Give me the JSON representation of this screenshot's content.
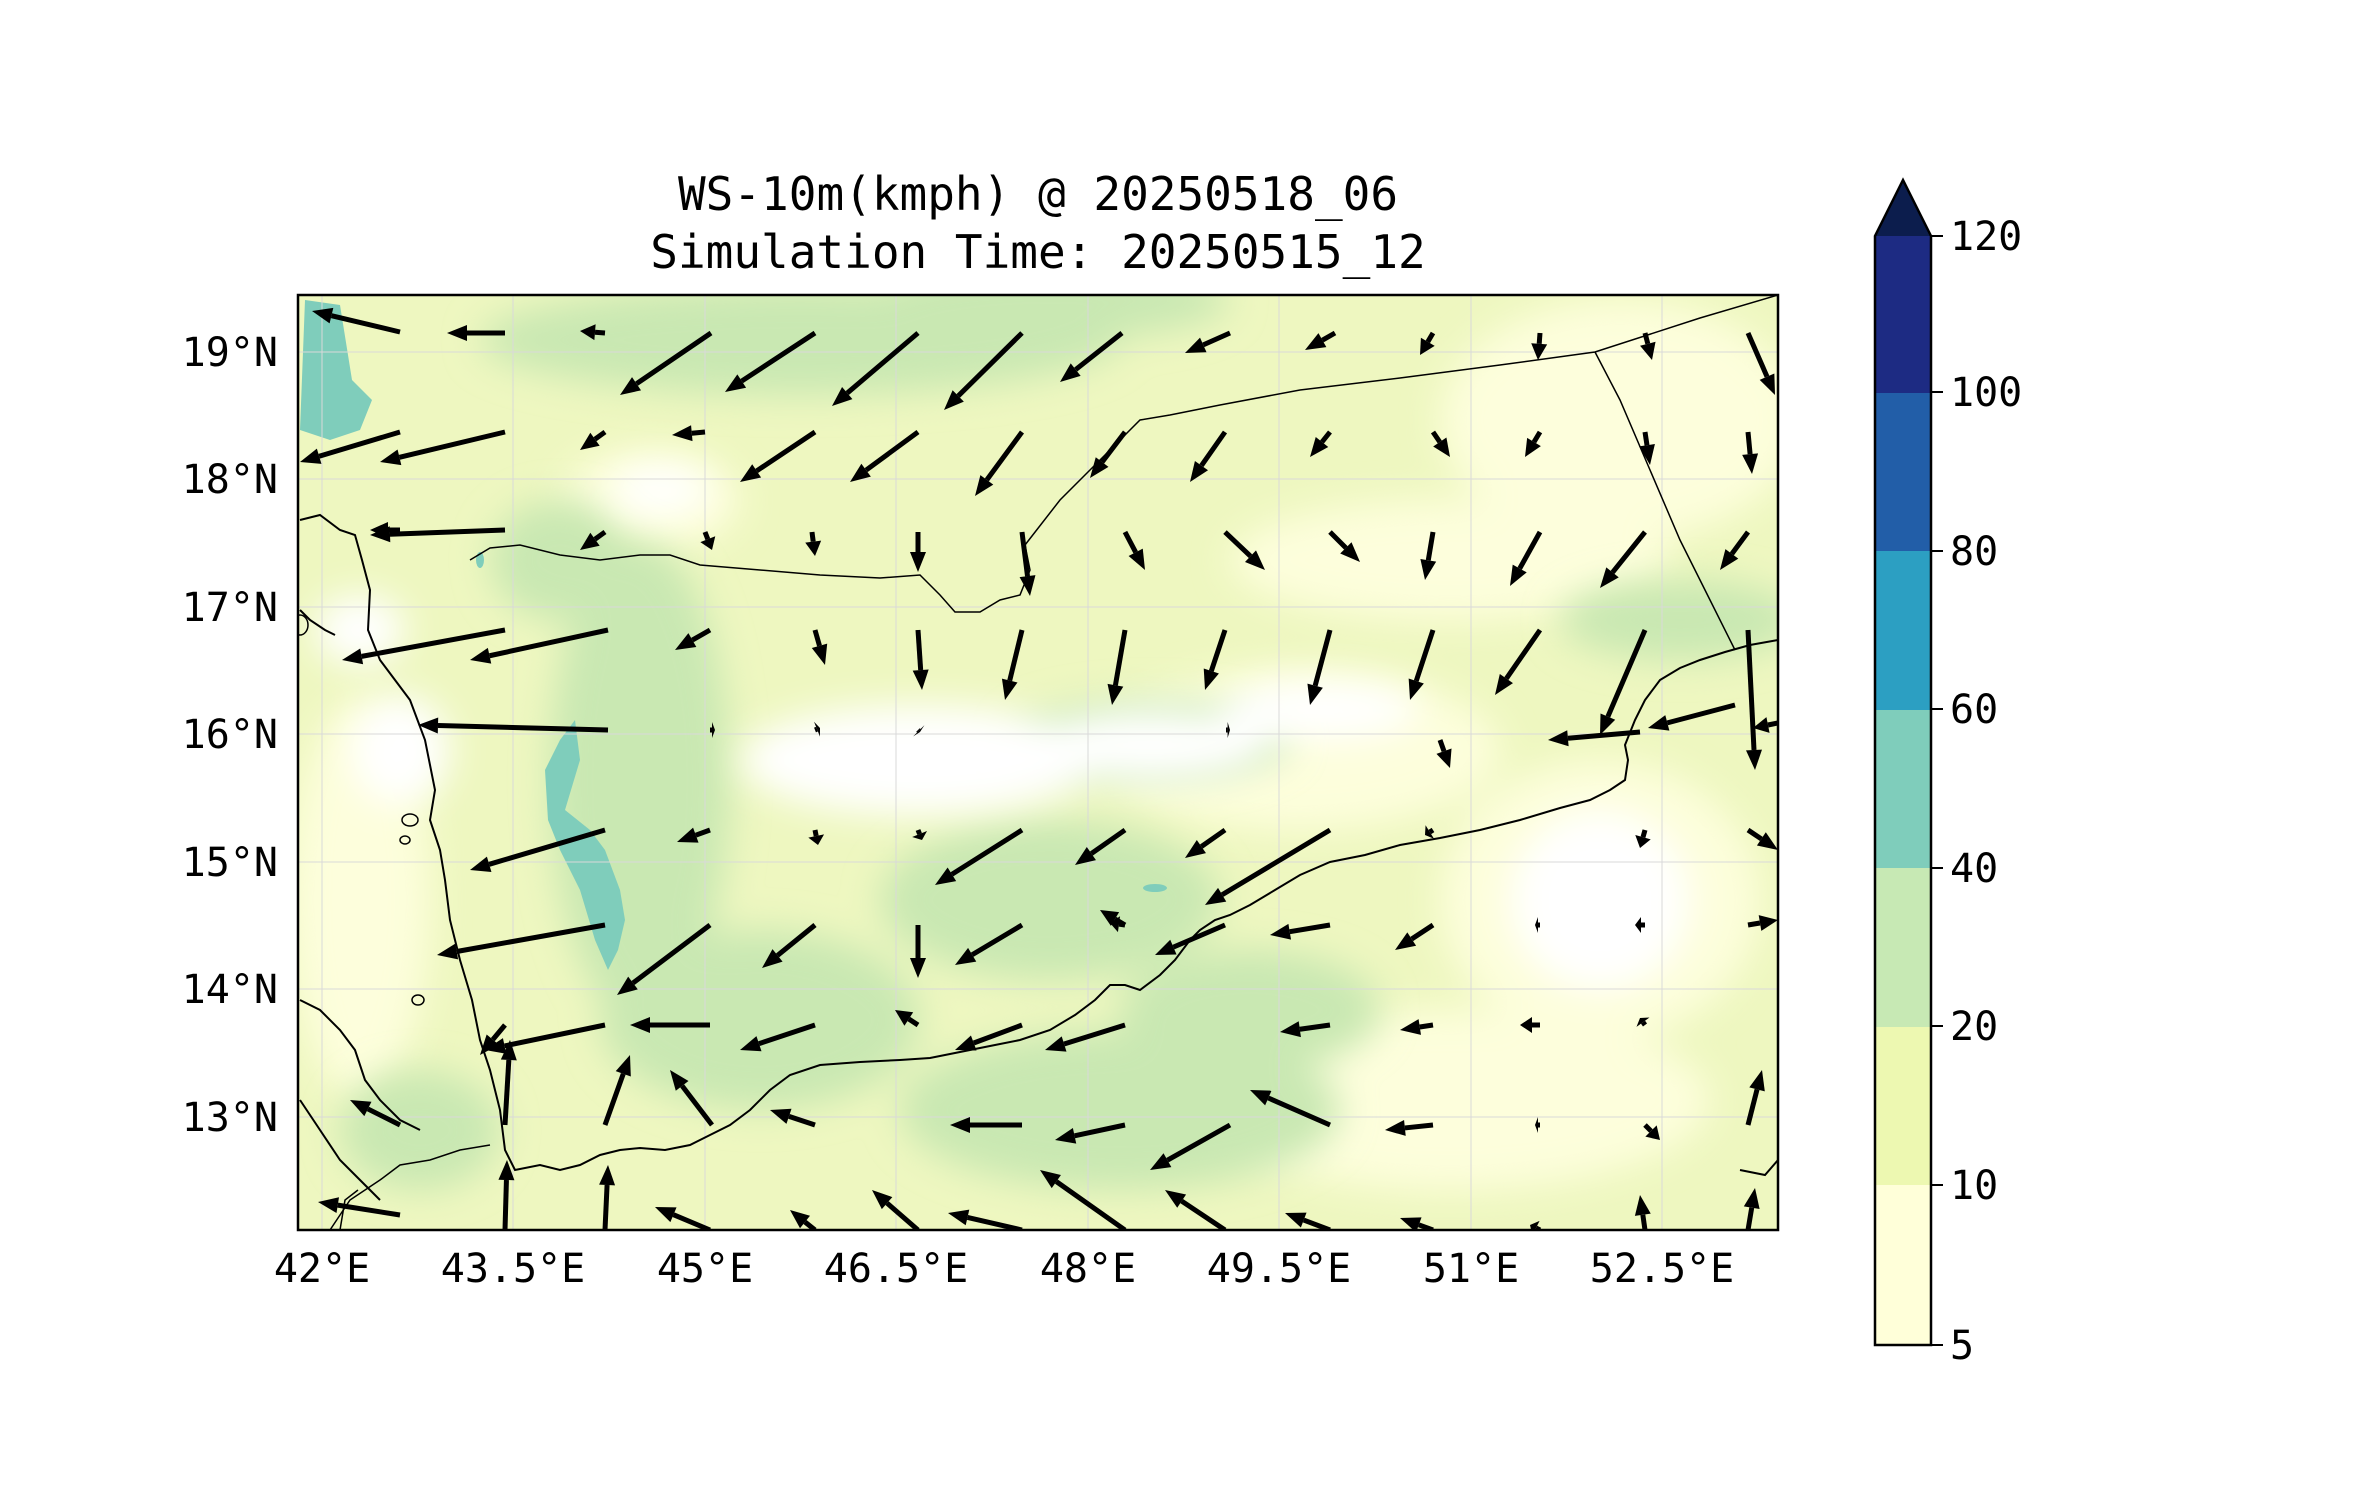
{
  "title": {
    "line1": "WS-10m(kmph) @ 20250518_06",
    "line2": "Simulation Time: 20250515_12"
  },
  "map": {
    "x_tick_labels": [
      "42°E",
      "43.5°E",
      "45°E",
      "46.5°E",
      "48°E",
      "49.5°E",
      "51°E",
      "52.5°E"
    ],
    "y_tick_labels": [
      "19°N",
      "18°N",
      "17°N",
      "16°N",
      "15°N",
      "14°N",
      "13°N"
    ],
    "land_color": "#f0f8c4"
  },
  "colorbar": {
    "tick_labels": [
      "5",
      "10",
      "20",
      "40",
      "60",
      "80",
      "100",
      "120"
    ],
    "colors": [
      "#ffffd9",
      "#edf8b1",
      "#c7e9b4",
      "#7fcdbb",
      "#2c9fc2",
      "#225ea8",
      "#1d2b83"
    ],
    "extend_color": "#0c1d4d",
    "extend": "max"
  }
}
